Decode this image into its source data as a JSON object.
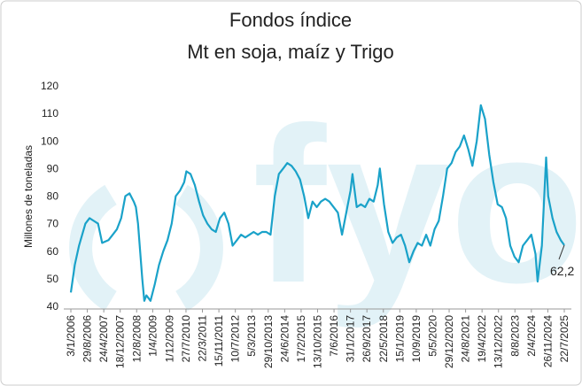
{
  "chart_data": {
    "type": "line",
    "title": "Fondos índice",
    "subtitle": "Mt en soja, maíz y Trigo",
    "y_label": "Millones de toneladas",
    "watermark": "fyo",
    "x": [
      "2006-01-03",
      "2006-03",
      "2006-05",
      "2006-08",
      "2006-10",
      "2006-12",
      "2007-02",
      "2007-04",
      "2007-07",
      "2007-09",
      "2007-11",
      "2008-01",
      "2008-03",
      "2008-05",
      "2008-07",
      "2008-08",
      "2008-09",
      "2008-10",
      "2008-11",
      "2008-12",
      "2009-01",
      "2009-03",
      "2009-05",
      "2009-07",
      "2009-09",
      "2009-11",
      "2010-01",
      "2010-03",
      "2010-05",
      "2010-07",
      "2010-08",
      "2010-10",
      "2010-12",
      "2011-02",
      "2011-04",
      "2011-06",
      "2011-08",
      "2011-10",
      "2011-12",
      "2012-02",
      "2012-04",
      "2012-06",
      "2012-08",
      "2012-10",
      "2012-12",
      "2013-02",
      "2013-04",
      "2013-06",
      "2013-08",
      "2013-10",
      "2013-12",
      "2014-02",
      "2014-04",
      "2014-06",
      "2014-08",
      "2014-10",
      "2014-12",
      "2015-02",
      "2015-04",
      "2015-06",
      "2015-08",
      "2015-10",
      "2015-12",
      "2016-02",
      "2016-04",
      "2016-06",
      "2016-08",
      "2016-10",
      "2016-12",
      "2017-02",
      "2017-03",
      "2017-05",
      "2017-07",
      "2017-09",
      "2017-11",
      "2018-01",
      "2018-03",
      "2018-04",
      "2018-06",
      "2018-08",
      "2018-10",
      "2018-12",
      "2019-02",
      "2019-04",
      "2019-06",
      "2019-08",
      "2019-10",
      "2019-12",
      "2020-02",
      "2020-04",
      "2020-06",
      "2020-08",
      "2020-10",
      "2020-12",
      "2021-02",
      "2021-04",
      "2021-06",
      "2021-08",
      "2021-10",
      "2021-12",
      "2022-02",
      "2022-04",
      "2022-06",
      "2022-08",
      "2022-10",
      "2022-12",
      "2023-02",
      "2023-04",
      "2023-06",
      "2023-08",
      "2023-10",
      "2023-12",
      "2024-02",
      "2024-04",
      "2024-06",
      "2024-07",
      "2024-09",
      "2024-10",
      "2024-11",
      "2024-12",
      "2025-02",
      "2025-04",
      "2025-06",
      "2025-07-22"
    ],
    "series": [
      {
        "name": "Fondos índice",
        "color": "#1aa2c9",
        "values": [
          45,
          55,
          62,
          70,
          72,
          71,
          70,
          63,
          64,
          66,
          68,
          72,
          80,
          81,
          78,
          76,
          70,
          60,
          50,
          42,
          44,
          42,
          48,
          55,
          60,
          64,
          70,
          80,
          82,
          85,
          89,
          88,
          84,
          78,
          73,
          70,
          68,
          67,
          72,
          74,
          70,
          62,
          64,
          66,
          65,
          66,
          67,
          66,
          67,
          67,
          66,
          80,
          88,
          90,
          92,
          91,
          89,
          86,
          80,
          72,
          78,
          76,
          78,
          79,
          78,
          76,
          74,
          66,
          74,
          82,
          88,
          76,
          77,
          76,
          79,
          78,
          84,
          90,
          77,
          67,
          63,
          65,
          66,
          62,
          56,
          60,
          63,
          62,
          66,
          62,
          68,
          71,
          80,
          90,
          92,
          96,
          98,
          102,
          97,
          91,
          100,
          113,
          108,
          95,
          85,
          77,
          76,
          72,
          62,
          58,
          56,
          62,
          64,
          66,
          59,
          49,
          62,
          78,
          94,
          80,
          72,
          67,
          64,
          62.2
        ]
      }
    ],
    "annotations": [
      {
        "x": "2025-07-22",
        "value": 62.2,
        "label": "62,2"
      }
    ],
    "xlim": [
      "2006-01-03",
      "2025-07-22"
    ],
    "xticks": [
      {
        "value": "2006-01-03",
        "label": "3/1/2006"
      },
      {
        "value": "2006-08-29",
        "label": "29/8/2006"
      },
      {
        "value": "2007-04-24",
        "label": "24/4/2007"
      },
      {
        "value": "2007-12-18",
        "label": "18/12/2007"
      },
      {
        "value": "2008-08-12",
        "label": "12/8/2008"
      },
      {
        "value": "2009-04-01",
        "label": "1/4/2009"
      },
      {
        "value": "2009-12-01",
        "label": "1/12/2009"
      },
      {
        "value": "2010-07-27",
        "label": "27/7/2010"
      },
      {
        "value": "2011-03-22",
        "label": "22/3/2011"
      },
      {
        "value": "2011-11-15",
        "label": "15/11/2011"
      },
      {
        "value": "2012-07-10",
        "label": "10/7/2012"
      },
      {
        "value": "2013-03-05",
        "label": "5/3/2013"
      },
      {
        "value": "2013-10-29",
        "label": "29/10/2013"
      },
      {
        "value": "2014-06-24",
        "label": "24/6/2014"
      },
      {
        "value": "2015-02-17",
        "label": "17/2/2015"
      },
      {
        "value": "2015-10-13",
        "label": "13/10/2015"
      },
      {
        "value": "2016-06-07",
        "label": "7/6/2016"
      },
      {
        "value": "2017-01-31",
        "label": "31/1/2017"
      },
      {
        "value": "2017-09-26",
        "label": "26/9/2017"
      },
      {
        "value": "2018-05-22",
        "label": "22/5/2018"
      },
      {
        "value": "2019-01-15",
        "label": "15/1/2019"
      },
      {
        "value": "2019-09-10",
        "label": "10/9/2019"
      },
      {
        "value": "2020-05-05",
        "label": "5/5/2020"
      },
      {
        "value": "2020-12-29",
        "label": "29/12/2020"
      },
      {
        "value": "2021-08-24",
        "label": "24/8/2021"
      },
      {
        "value": "2022-04-19",
        "label": "19/4/2022"
      },
      {
        "value": "2022-12-13",
        "label": "13/12/2022"
      },
      {
        "value": "2023-08-08",
        "label": "8/8/2023"
      },
      {
        "value": "2024-04-02",
        "label": "2/4/2024"
      },
      {
        "value": "2024-11-26",
        "label": "26/11/2024"
      },
      {
        "value": "2025-07-22",
        "label": "22/7/2025"
      }
    ],
    "ylim": [
      40,
      120
    ],
    "yticks": [
      40,
      50,
      60,
      70,
      80,
      90,
      100,
      110,
      120
    ],
    "grid": false
  }
}
